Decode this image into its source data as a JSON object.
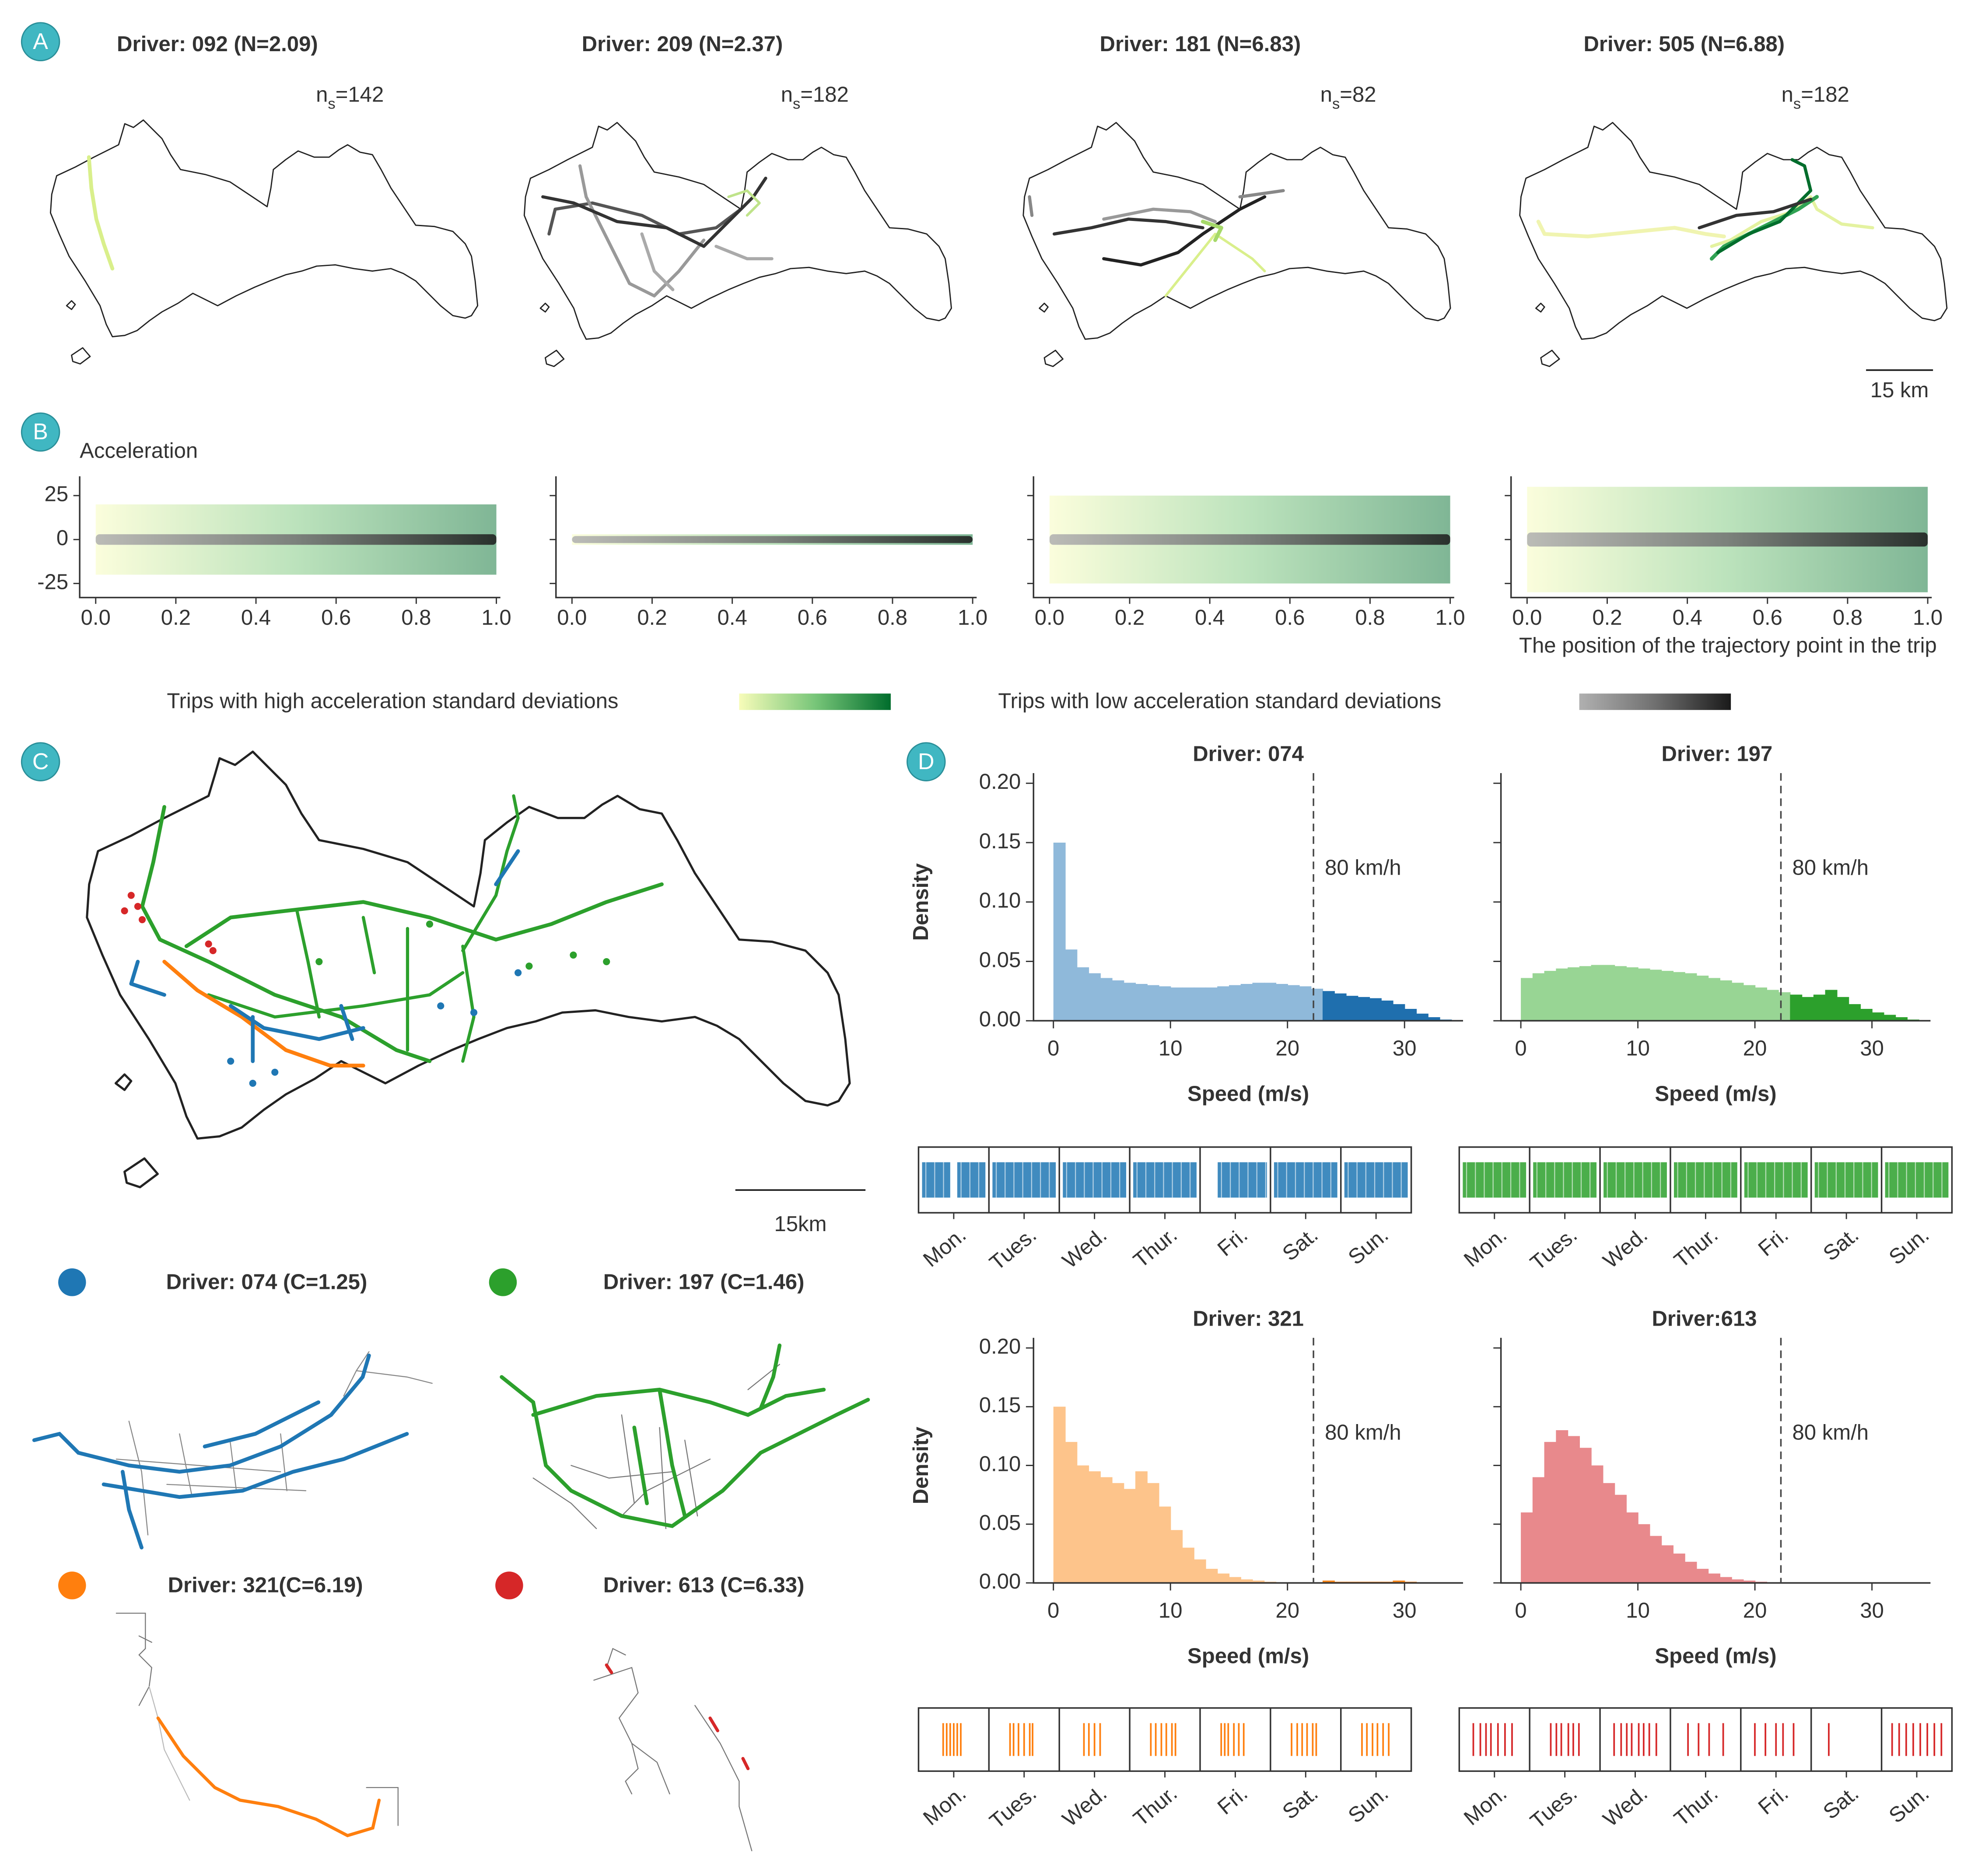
{
  "panel_labels": [
    "A",
    "B",
    "C",
    "D"
  ],
  "chart_data": [
    {
      "type": "map",
      "title": "Driver: 092 (N=2.09)",
      "annotation": [
        "n",
        "s",
        "=142"
      ]
    },
    {
      "type": "map",
      "title": "Driver: 209 (N=2.37)",
      "annotation": [
        "n",
        "s",
        "=182"
      ]
    },
    {
      "type": "map",
      "title": "Driver: 181 (N=6.83)",
      "annotation": [
        "n",
        "s",
        "=82"
      ]
    },
    {
      "type": "map",
      "title": "Driver: 505 (N=6.88)",
      "annotation": [
        "n",
        "s",
        "=182"
      ],
      "scale_label": "15 km"
    },
    {
      "type": "scatter_band",
      "ylabel": "Acceleration",
      "xlim": [
        -0.04,
        1.01
      ],
      "ylim": [
        -33,
        36
      ],
      "xticks": [
        {
          "value": 0,
          "label": "0.0"
        },
        0.2,
        0.4,
        0.6,
        0.8,
        {
          "value": 1,
          "label": "1.0"
        }
      ],
      "yticks": [
        -25,
        0,
        25
      ],
      "spread_high": 20,
      "spread_low": 3
    },
    {
      "type": "scatter_band",
      "xlim": [
        -0.04,
        1.01
      ],
      "ylim": [
        -33,
        36
      ],
      "xticks": [
        {
          "value": 0,
          "label": "0.0"
        },
        0.2,
        0.4,
        0.6,
        0.8,
        {
          "value": 1,
          "label": "1.0"
        }
      ],
      "yticks": [
        -25,
        0,
        25
      ],
      "ytick_labels": false,
      "spread_high": 3,
      "spread_low": 2
    },
    {
      "type": "scatter_band",
      "xlim": [
        -0.04,
        1.01
      ],
      "ylim": [
        -33,
        36
      ],
      "xticks": [
        {
          "value": 0,
          "label": "0.0"
        },
        0.2,
        0.4,
        0.6,
        0.8,
        {
          "value": 1,
          "label": "1.0"
        }
      ],
      "yticks": [
        -25,
        0,
        25
      ],
      "ytick_labels": false,
      "spread_high": 25,
      "spread_low": 3
    },
    {
      "type": "scatter_band",
      "xlabel": "The position of the trajectory point in the trip",
      "xlim": [
        -0.04,
        1.01
      ],
      "ylim": [
        -33,
        36
      ],
      "xticks": [
        {
          "value": 0,
          "label": "0.0"
        },
        0.2,
        0.4,
        0.6,
        0.8,
        {
          "value": 1,
          "label": "1.0"
        }
      ],
      "yticks": [
        -25,
        0,
        25
      ],
      "ytick_labels": false,
      "spread_high": 30,
      "spread_low": 4
    },
    {
      "type": "legend",
      "series": [
        {
          "name": "Trips with high acceleration standard deviations",
          "colors": [
            "#f7fcb9",
            "#78c679",
            "#006d2c"
          ]
        },
        {
          "name": "Trips with low acceleration standard deviations",
          "colors": [
            "#b0b0b0",
            "#707070",
            "#1a1a1a"
          ]
        }
      ]
    },
    {
      "type": "map",
      "scale_label": "15km",
      "series": [
        {
          "name": "Driver: 074 (C=1.25)",
          "color": "#1f77b4"
        },
        {
          "name": "Driver: 197 (C=1.46)",
          "color": "#2ca02c"
        },
        {
          "name": "Driver: 321(C=6.19)",
          "color": "#ff7f0e"
        },
        {
          "name": "Driver: 613 (C=6.33)",
          "color": "#d62728"
        }
      ]
    },
    {
      "type": "histogram",
      "title": "Driver: 074",
      "xlabel": "Speed (m/s)",
      "ylabel": "Density",
      "bins": [
        0,
        1,
        2,
        3,
        4,
        5,
        6,
        7,
        8,
        9,
        10,
        11,
        12,
        13,
        14,
        15,
        16,
        17,
        18,
        19,
        20,
        21,
        22,
        23,
        24,
        25,
        26,
        27,
        28,
        29,
        30,
        31,
        32,
        33,
        34
      ],
      "values": [
        0.15,
        0.06,
        0.045,
        0.04,
        0.036,
        0.034,
        0.032,
        0.031,
        0.03,
        0.029,
        0.028,
        0.028,
        0.028,
        0.028,
        0.029,
        0.03,
        0.031,
        0.032,
        0.032,
        0.031,
        0.03,
        0.029,
        0.027,
        0.025,
        0.023,
        0.021,
        0.02,
        0.019,
        0.017,
        0.014,
        0.01,
        0.006,
        0.003,
        0.001
      ],
      "color": "#8fb9da",
      "highlight_color": "#1f6fae",
      "vline": 22.22,
      "vline_label": "80 km/h",
      "xlim": [
        -1.7,
        35
      ],
      "ylim": [
        0,
        0.2
      ],
      "xticks": [
        0,
        10,
        20,
        30
      ],
      "yticks": [
        {
          "value": 0,
          "label": "0.00"
        },
        0.05,
        {
          "value": 0.1,
          "label": "0.10"
        },
        0.15,
        {
          "value": 0.2,
          "label": "0.20"
        }
      ]
    },
    {
      "type": "histogram",
      "title": "Driver: 197",
      "xlabel": "Speed (m/s)",
      "bins": [
        0,
        1,
        2,
        3,
        4,
        5,
        6,
        7,
        8,
        9,
        10,
        11,
        12,
        13,
        14,
        15,
        16,
        17,
        18,
        19,
        20,
        21,
        22,
        23,
        24,
        25,
        26,
        27,
        28,
        29,
        30,
        31,
        32,
        33,
        34
      ],
      "values": [
        0.036,
        0.04,
        0.042,
        0.044,
        0.045,
        0.046,
        0.047,
        0.047,
        0.046,
        0.045,
        0.044,
        0.043,
        0.042,
        0.041,
        0.04,
        0.038,
        0.036,
        0.034,
        0.032,
        0.03,
        0.028,
        0.026,
        0.024,
        0.022,
        0.02,
        0.022,
        0.026,
        0.02,
        0.014,
        0.01,
        0.007,
        0.005,
        0.003,
        0.001
      ],
      "color": "#98d594",
      "highlight_color": "#2ca02c",
      "vline": 22.22,
      "vline_label": "80 km/h",
      "xlim": [
        -1.7,
        35
      ],
      "ylim": [
        0,
        0.2
      ],
      "xticks": [
        0,
        10,
        20,
        30
      ],
      "yticks": [
        0,
        0.05,
        0.1,
        0.15,
        0.2
      ],
      "ytick_labels": false
    },
    {
      "type": "histogram",
      "title": "Driver: 321",
      "xlabel": "Speed (m/s)",
      "ylabel": "Density",
      "bins": [
        0,
        1,
        2,
        3,
        4,
        5,
        6,
        7,
        8,
        9,
        10,
        11,
        12,
        13,
        14,
        15,
        16,
        17,
        18,
        19,
        20,
        21,
        22,
        23,
        24,
        25,
        26,
        27,
        28,
        29,
        30,
        31,
        32,
        33,
        34
      ],
      "values": [
        0.15,
        0.12,
        0.1,
        0.095,
        0.09,
        0.085,
        0.08,
        0.095,
        0.085,
        0.065,
        0.045,
        0.03,
        0.02,
        0.012,
        0.008,
        0.005,
        0.003,
        0.002,
        0.001,
        0,
        0,
        0,
        0,
        0.002,
        0.001,
        0.001,
        0.001,
        0.001,
        0.001,
        0.002,
        0.001,
        0,
        0,
        0
      ],
      "color": "#fdc48b",
      "highlight_color": "#f58518",
      "vline": 22.22,
      "vline_label": "80 km/h",
      "xlim": [
        -1.7,
        35
      ],
      "ylim": [
        0,
        0.2
      ],
      "xticks": [
        0,
        10,
        20,
        30
      ],
      "yticks": [
        {
          "value": 0,
          "label": "0.00"
        },
        0.05,
        {
          "value": 0.1,
          "label": "0.10"
        },
        0.15,
        {
          "value": 0.2,
          "label": "0.20"
        }
      ]
    },
    {
      "type": "histogram",
      "title": "Driver:613",
      "xlabel": "Speed (m/s)",
      "bins": [
        0,
        1,
        2,
        3,
        4,
        5,
        6,
        7,
        8,
        9,
        10,
        11,
        12,
        13,
        14,
        15,
        16,
        17,
        18,
        19,
        20,
        21,
        22,
        23,
        24,
        25,
        26,
        27,
        28,
        29,
        30,
        31,
        32,
        33,
        34
      ],
      "values": [
        0.06,
        0.09,
        0.12,
        0.13,
        0.125,
        0.115,
        0.1,
        0.085,
        0.075,
        0.06,
        0.05,
        0.04,
        0.032,
        0.025,
        0.018,
        0.012,
        0.008,
        0.005,
        0.003,
        0.002,
        0.001,
        0,
        0,
        0,
        0,
        0,
        0,
        0,
        0,
        0,
        0,
        0,
        0,
        0
      ],
      "color": "#e8898c",
      "highlight_color": "#d62728",
      "vline": 22.22,
      "vline_label": "80 km/h",
      "xlim": [
        -1.7,
        35
      ],
      "ylim": [
        0,
        0.2
      ],
      "xticks": [
        0,
        10,
        20,
        30
      ],
      "yticks": [
        0,
        0.05,
        0.1,
        0.15,
        0.2
      ],
      "ytick_labels": false
    },
    {
      "type": "rug",
      "categories": [
        "Mon.",
        "Tues.",
        "Wed.",
        "Thur.",
        "Fri.",
        "Sat.",
        "Sun."
      ],
      "xlim": [
        0,
        7
      ],
      "color": "#1f77b4",
      "spans": [
        [
          0.05,
          0.45
        ],
        [
          0.55,
          0.95
        ],
        [
          1.05,
          1.95
        ],
        [
          2.05,
          2.95
        ],
        [
          3.05,
          3.95
        ],
        [
          4.25,
          4.95
        ],
        [
          5.05,
          5.95
        ],
        [
          6.05,
          6.95
        ]
      ]
    },
    {
      "type": "rug",
      "categories": [
        "Mon.",
        "Tues.",
        "Wed.",
        "Thur.",
        "Fri.",
        "Sat.",
        "Sun."
      ],
      "xlim": [
        0,
        7
      ],
      "color": "#2ca02c",
      "spans": [
        [
          0.05,
          0.95
        ],
        [
          1.05,
          1.95
        ],
        [
          2.05,
          2.95
        ],
        [
          3.05,
          3.95
        ],
        [
          4.05,
          4.95
        ],
        [
          5.05,
          5.95
        ],
        [
          6.05,
          6.95
        ]
      ]
    },
    {
      "type": "rug",
      "categories": [
        "Mon.",
        "Tues.",
        "Wed.",
        "Thur.",
        "Fri.",
        "Sat.",
        "Sun."
      ],
      "xlim": [
        0,
        7
      ],
      "color": "#ff7f0e",
      "events": [
        0.35,
        0.4,
        0.45,
        0.5,
        0.55,
        0.6,
        1.3,
        1.35,
        1.42,
        1.5,
        1.58,
        1.62,
        2.35,
        2.42,
        2.5,
        2.58,
        3.3,
        3.37,
        3.45,
        3.52,
        3.6,
        3.65,
        4.3,
        4.35,
        4.4,
        4.48,
        4.55,
        4.62,
        5.3,
        5.38,
        5.45,
        5.52,
        5.6,
        5.65,
        6.3,
        6.37,
        6.45,
        6.52,
        6.6,
        6.68
      ]
    },
    {
      "type": "rug",
      "categories": [
        "Mon.",
        "Tues.",
        "Wed.",
        "Thur.",
        "Fri.",
        "Sat.",
        "Sun."
      ],
      "xlim": [
        0,
        7
      ],
      "color": "#d62728",
      "events": [
        0.2,
        0.3,
        0.38,
        0.45,
        0.55,
        0.65,
        0.75,
        1.3,
        1.38,
        1.45,
        1.55,
        1.62,
        1.7,
        2.2,
        2.3,
        2.38,
        2.45,
        2.55,
        2.62,
        2.7,
        2.8,
        3.25,
        3.4,
        3.55,
        3.75,
        4.2,
        4.35,
        4.5,
        4.6,
        4.75,
        5.25,
        6.15,
        6.25,
        6.35,
        6.45,
        6.55,
        6.65,
        6.75,
        6.85
      ]
    }
  ]
}
